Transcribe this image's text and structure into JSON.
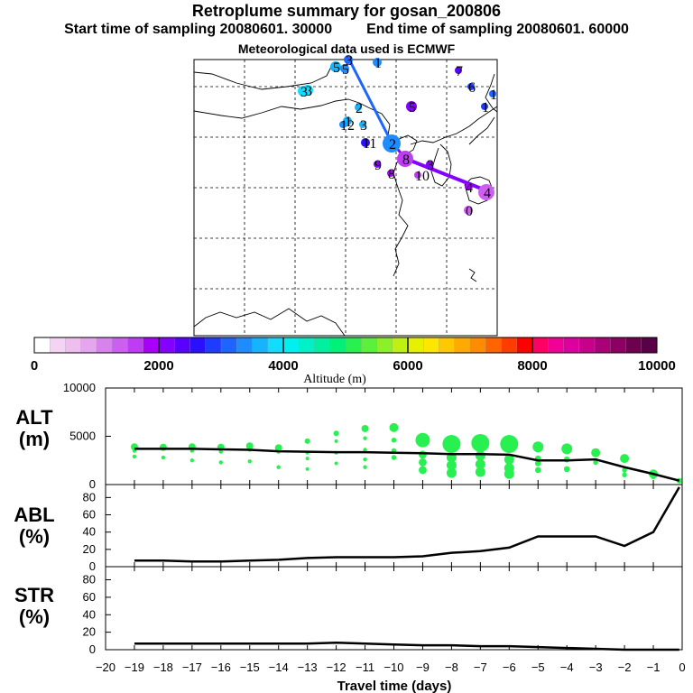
{
  "titles": {
    "main": "Retroplume summary for gosan_200806",
    "start_label": "Start time of sampling 20080601. 30000",
    "end_label": "End time of sampling 20080601. 60000",
    "met_label": "Meteorological data used is ECMWF"
  },
  "colorbar": {
    "title": "Altitude (m)",
    "ticks": [
      "0",
      "2000",
      "4000",
      "6000",
      "8000",
      "10000"
    ],
    "colors": [
      "#ffffff",
      "#f4d4f4",
      "#eebeee",
      "#e6a6ee",
      "#d882ee",
      "#cc5ef0",
      "#be3cf2",
      "#a800f8",
      "#8400ff",
      "#5a00ff",
      "#2a10ff",
      "#1e3cff",
      "#1e64ff",
      "#1e8cff",
      "#14b4ff",
      "#14dcff",
      "#00f0f0",
      "#00f0c8",
      "#00f0a0",
      "#00f078",
      "#28f050",
      "#5af03c",
      "#8cf028",
      "#bef014",
      "#e6f000",
      "#ffe600",
      "#ffc800",
      "#ffaa00",
      "#ff8c00",
      "#ff6400",
      "#ff3c00",
      "#ff0000",
      "#ff0064",
      "#f00096",
      "#dc00a0",
      "#c8008c",
      "#aa0078",
      "#8c0064",
      "#6e0050",
      "#5a0046"
    ]
  },
  "map": {
    "markers": [
      {
        "label": "3",
        "color": "#1e64ff",
        "size": 5
      },
      {
        "label": "5",
        "color": "#14b4ff",
        "size": 6
      },
      {
        "label": "3",
        "color": "#14dcff",
        "size": 6
      },
      {
        "label": "5",
        "color": "#1e8cff",
        "size": 5
      },
      {
        "label": "1",
        "color": "#1e8cff",
        "size": 5
      },
      {
        "label": "3",
        "color": "#14dcff",
        "size": 6
      },
      {
        "label": "1",
        "color": "#14b4ff",
        "size": 5
      },
      {
        "label": "7",
        "color": "#5a00ff",
        "size": 4
      },
      {
        "label": "6",
        "color": "#1e3cff",
        "size": 4
      },
      {
        "label": "1",
        "color": "#1e3cff",
        "size": 4
      },
      {
        "label": "1",
        "color": "#1e64ff",
        "size": 4
      },
      {
        "label": "2",
        "color": "#14b4ff",
        "size": 4
      },
      {
        "label": "5",
        "color": "#8400ff",
        "size": 6
      },
      {
        "label": "12",
        "color": "#1e8cff",
        "size": 4
      },
      {
        "label": "3",
        "color": "#14b4ff",
        "size": 4
      },
      {
        "label": "11",
        "color": "#2a10ff",
        "size": 5
      },
      {
        "label": "2",
        "color": "#1e8cff",
        "size": 10
      },
      {
        "label": "8",
        "color": "#be3cf2",
        "size": 9
      },
      {
        "label": "9",
        "color": "#8400ff",
        "size": 4
      },
      {
        "label": "8",
        "color": "#a800f8",
        "size": 4
      },
      {
        "label": "10",
        "color": "#be3cf2",
        "size": 4
      },
      {
        "label": "3",
        "color": "#8400ff",
        "size": 4
      },
      {
        "label": "4",
        "color": "#a800f8",
        "size": 4
      },
      {
        "label": "4",
        "color": "#cc5ef0",
        "size": 9
      },
      {
        "label": "0",
        "color": "#cc5ef0",
        "size": 5
      }
    ]
  },
  "chart_data": [
    {
      "type": "scatter",
      "name": "ALT",
      "ylabel": "ALT",
      "yunit": "(m)",
      "ylim": [
        0,
        10000
      ],
      "yticks": [
        0,
        5000,
        10000
      ],
      "xlim": [
        -20,
        0
      ],
      "mean_line": {
        "x": [
          -19,
          -18,
          -17,
          -16,
          -15,
          -14,
          -13,
          -12,
          -11,
          -10,
          -9,
          -8,
          -7,
          -6,
          -5,
          -4,
          -3,
          -2,
          -1,
          -0.1
        ],
        "y": [
          3700,
          3700,
          3700,
          3650,
          3600,
          3450,
          3400,
          3350,
          3350,
          3300,
          3250,
          3150,
          3150,
          3100,
          2500,
          2500,
          2600,
          1800,
          1100,
          400
        ]
      },
      "clusters": [
        {
          "x": -19,
          "y": [
            3900,
            3500,
            2900
          ]
        },
        {
          "x": -18,
          "y": [
            3850,
            2800
          ]
        },
        {
          "x": -17,
          "y": [
            3900,
            3500,
            2500
          ]
        },
        {
          "x": -16,
          "y": [
            3850,
            3400,
            2300
          ]
        },
        {
          "x": -15,
          "y": [
            4000,
            3600,
            2400
          ]
        },
        {
          "x": -14,
          "y": [
            3800,
            3400,
            1800
          ]
        },
        {
          "x": -13,
          "y": [
            4500,
            3300,
            2700,
            1600
          ]
        },
        {
          "x": -12,
          "y": [
            5300,
            4500,
            3300,
            2200
          ]
        },
        {
          "x": -11,
          "y": [
            5800,
            4800,
            3600,
            2600,
            1800
          ]
        },
        {
          "x": -10,
          "y": [
            5900,
            4600,
            3500,
            2800
          ]
        },
        {
          "x": -9,
          "y": [
            4600,
            3100,
            2300,
            1500
          ]
        },
        {
          "x": -8,
          "y": [
            4200,
            2800,
            2000,
            1200
          ]
        },
        {
          "x": -7,
          "y": [
            4300,
            3000,
            2100,
            1300
          ]
        },
        {
          "x": -6,
          "y": [
            4200,
            2600,
            1700,
            1100
          ]
        },
        {
          "x": -5,
          "y": [
            3900,
            2700,
            2200,
            1500
          ]
        },
        {
          "x": -4,
          "y": [
            3700,
            2600,
            1600
          ]
        },
        {
          "x": -3,
          "y": [
            3300,
            2300
          ]
        },
        {
          "x": -2,
          "y": [
            2700,
            1500,
            1000
          ]
        },
        {
          "x": -1,
          "y": [
            1100,
            800
          ]
        },
        {
          "x": -0.1,
          "y": [
            400
          ]
        }
      ],
      "sizes": [
        4,
        4,
        4,
        4,
        4,
        4,
        3,
        3,
        4,
        5,
        8,
        10,
        10,
        10,
        6,
        6,
        5,
        5,
        5,
        3
      ]
    },
    {
      "type": "line",
      "name": "ABL",
      "ylabel": "ABL",
      "yunit": "(%)",
      "ylim": [
        0,
        95
      ],
      "yticks": [
        0,
        20,
        40,
        60,
        80
      ],
      "xlim": [
        -20,
        0
      ],
      "x": [
        -19,
        -18,
        -17,
        -16,
        -15,
        -14,
        -13,
        -12,
        -11,
        -10,
        -9,
        -8,
        -7,
        -6,
        -5,
        -4,
        -3,
        -2,
        -1,
        -0.1
      ],
      "y": [
        7,
        7,
        6,
        6,
        7,
        8,
        10,
        11,
        11,
        11,
        12,
        16,
        18,
        22,
        35,
        35,
        35,
        24,
        40,
        92
      ]
    },
    {
      "type": "line",
      "name": "STR",
      "ylabel": "STR",
      "yunit": "(%)",
      "ylim": [
        0,
        95
      ],
      "yticks": [
        0,
        20,
        40,
        60,
        80
      ],
      "xlim": [
        -20,
        0
      ],
      "x": [
        -19,
        -18,
        -17,
        -16,
        -15,
        -14,
        -13,
        -12,
        -11,
        -10,
        -9,
        -8,
        -7,
        -6,
        -5,
        -4,
        -3,
        -2,
        -1,
        -0.1
      ],
      "y": [
        7,
        7,
        7,
        7,
        7,
        7,
        7,
        8,
        7,
        6,
        5,
        5,
        4,
        4,
        3,
        2,
        1,
        0,
        0,
        0
      ]
    }
  ],
  "xaxis": {
    "label": "Travel time (days)",
    "ticks": [
      "-20",
      "-19",
      "-18",
      "-17",
      "-16",
      "-15",
      "-14",
      "-13",
      "-12",
      "-11",
      "-10",
      "-9",
      "-8",
      "-7",
      "-6",
      "-5",
      "-4",
      "-3",
      "-2",
      "-1",
      "0"
    ]
  }
}
